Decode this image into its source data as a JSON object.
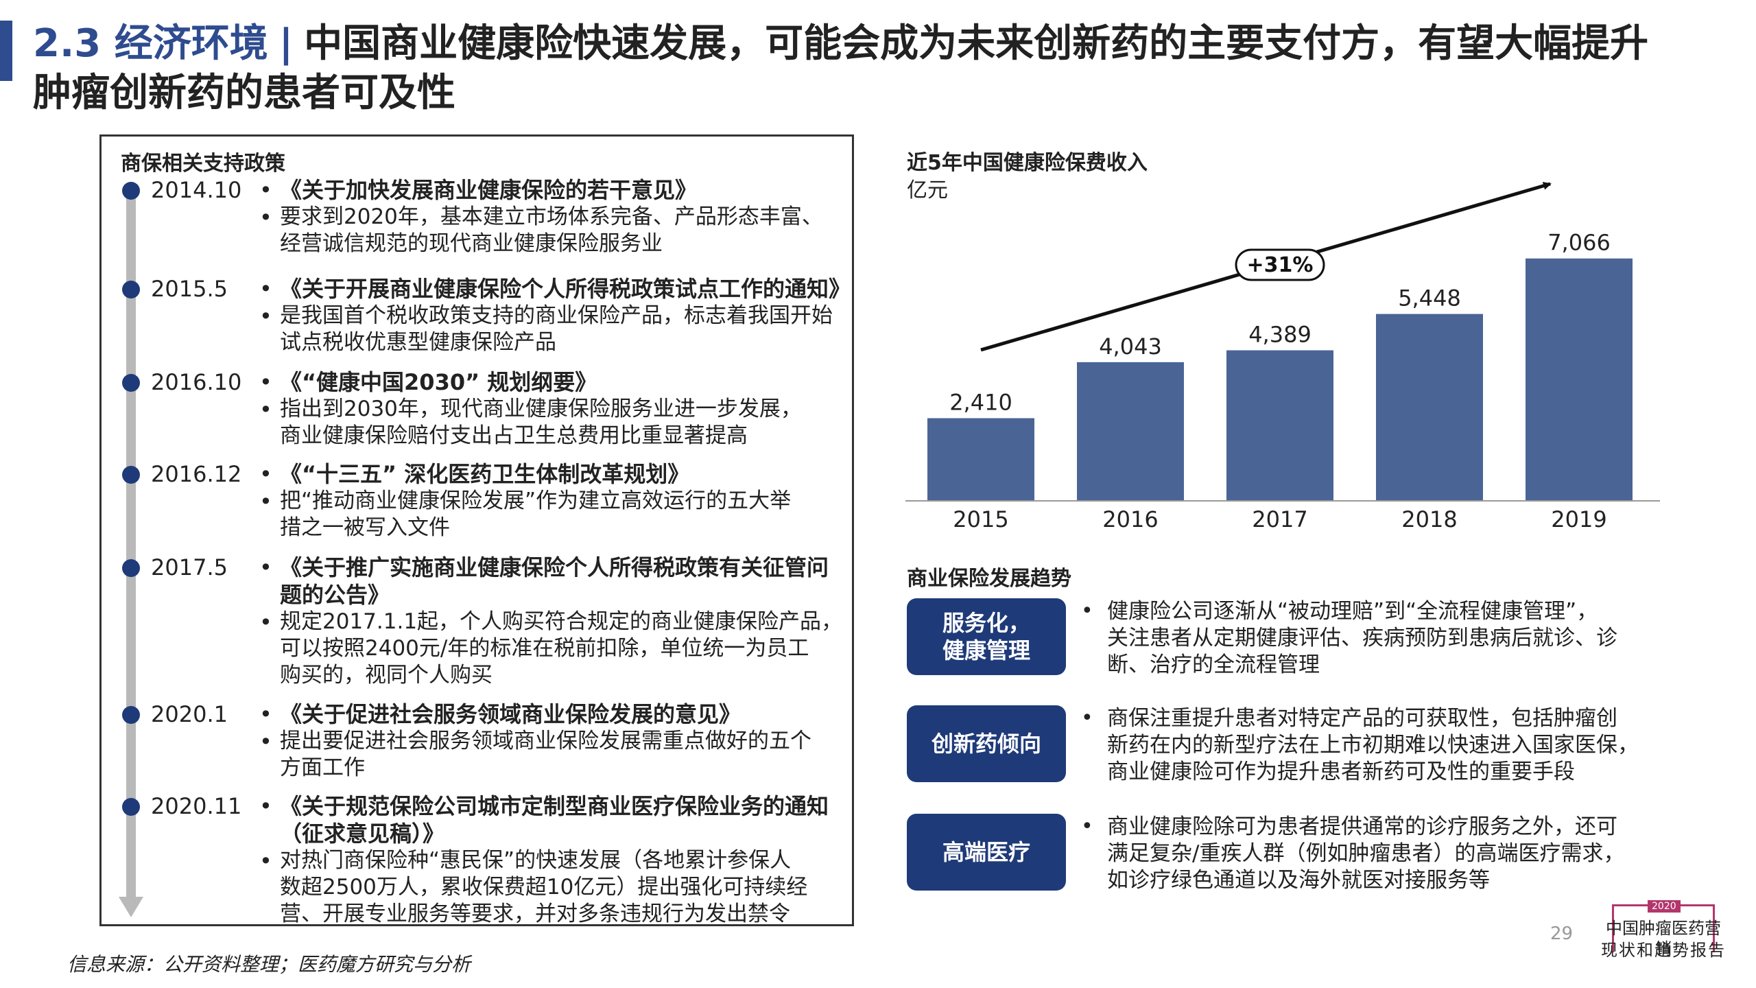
{
  "header": {
    "section": "2.3 经济环境",
    "separator": "|",
    "title_line1": "中国商业健康险快速发展，可能会成为未来创新药的主要支付方，有望大幅提升",
    "title_line2": "肿瘤创新药的患者可及性"
  },
  "policy": {
    "heading": "商保相关支持政策",
    "bullet": "•",
    "entries": [
      {
        "date": "2014.10",
        "title": "《关于加快发展商业健康保险的若干意见》",
        "desc": [
          "要求到2020年，基本建立市场体系完备、产品形态丰富、",
          "经营诚信规范的现代商业健康保险服务业"
        ]
      },
      {
        "date": "2015.5",
        "title": "《关于开展商业健康保险个人所得税政策试点工作的通知》",
        "desc": [
          "是我国首个税收政策支持的商业保险产品，标志着我国开始",
          "试点税收优惠型健康保险产品"
        ]
      },
      {
        "date": "2016.10",
        "title": "《“健康中国2030” 规划纲要》",
        "desc": [
          "指出到2030年，现代商业健康保险服务业进一步发展，",
          "商业健康保险赔付支出占卫生总费用比重显著提高"
        ]
      },
      {
        "date": "2016.12",
        "title": "《“十三五” 深化医药卫生体制改革规划》",
        "desc": [
          "把“推动商业健康保险发展”作为建立高效运行的五大举",
          "措之一被写入文件"
        ]
      },
      {
        "date": "2017.5",
        "title": "《关于推广实施商业健康保险个人所得税政策有关征管问",
        "title2": "题的公告》",
        "desc": [
          "规定2017.1.1起，个人购买符合规定的商业健康保险产品，",
          "可以按照2400元/年的标准在税前扣除，单位统一为员工",
          "购买的，视同个人购买"
        ]
      },
      {
        "date": "2020.1",
        "title": "《关于促进社会服务领域商业保险发展的意见》",
        "desc": [
          "提出要促进社会服务领域商业保险发展需重点做好的五个",
          "方面工作"
        ]
      },
      {
        "date": "2020.11",
        "title": "《关于规范保险公司城市定制型商业医疗保险业务的通知",
        "title2": "（征求意见稿）》",
        "desc": [
          "对热门商保险种“惠民保”的快速发展（各地累计参保人",
          "数超2500万人，累收保费超10亿元）提出强化可持续经",
          "营、开展专业服务等要求，并对多条违规行为发出禁令"
        ]
      }
    ]
  },
  "chart_data": {
    "type": "bar",
    "title": "近5年中国健康险保费收入",
    "ylabel": "亿元",
    "categories": [
      "2015",
      "2016",
      "2017",
      "2018",
      "2019"
    ],
    "values": [
      2410,
      4043,
      4389,
      5448,
      7066
    ],
    "value_labels": [
      "2,410",
      "4,043",
      "4,389",
      "5,448",
      "7,066"
    ],
    "annotation": "+31%",
    "bar_color": "#4a6595",
    "ylim": [
      0,
      7800
    ]
  },
  "trends": {
    "heading": "商业保险发展趋势",
    "bullet": "•",
    "items": [
      {
        "label_line1": "服务化，",
        "label_line2": "健康管理",
        "text": [
          "健康险公司逐渐从“被动理赔”到“全流程健康管理”，",
          "关注患者从定期健康评估、疾病预防到患病后就诊、诊",
          "断、治疗的全流程管理"
        ]
      },
      {
        "label_line1": "创新药倾向",
        "label_line2": "",
        "text": [
          "商保注重提升患者对特定产品的可获取性，包括肿瘤创",
          "新药在内的新型疗法在上市初期难以快速进入国家医保，",
          "商业健康险可作为提升患者新药可及性的重要手段"
        ]
      },
      {
        "label_line1": "高端医疗",
        "label_line2": "",
        "text": [
          "商业健康险除可为患者提供通常的诊疗服务之外，还可",
          "满足复杂/重疾人群（例如肿瘤患者）的高端医疗需求，",
          "如诊疗绿色通道以及海外就医对接服务等"
        ]
      }
    ]
  },
  "footer": {
    "source": "信息来源：公开资料整理；医药魔方研究与分析",
    "page": "29",
    "logo_year": "2020",
    "logo_line1": "中国肿瘤医药营销",
    "logo_line2": "现状和趋势报告"
  },
  "colors": {
    "accent": "#2e4c8f",
    "pill": "#1f3a78",
    "bar": "#4a6595",
    "logo": "#b3366b"
  }
}
